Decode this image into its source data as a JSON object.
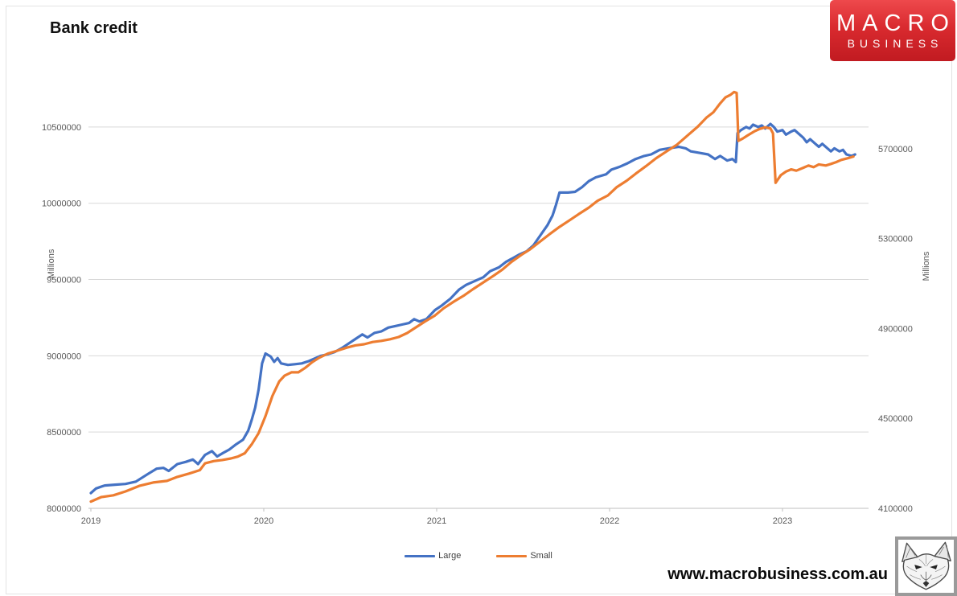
{
  "title": "Bank credit",
  "logo": {
    "line1": "MACRO",
    "line2": "BUSINESS",
    "bg_top": "#ee494c",
    "bg_bottom": "#c11b21"
  },
  "footer": {
    "url": "www.macrobusiness.com.au"
  },
  "chart_data": {
    "type": "line",
    "title": "Bank credit",
    "grid": true,
    "legend_position": "bottom",
    "x_ticks": [
      "2019",
      "2020",
      "2021",
      "2022",
      "2023"
    ],
    "x_range": [
      2019.0,
      2023.51
    ],
    "left_axis": {
      "label": "Millions",
      "min": 8000000,
      "max": 10800000,
      "ticks": [
        8000000,
        8500000,
        9000000,
        9500000,
        10000000,
        10500000
      ]
    },
    "right_axis": {
      "label": "Millions",
      "min": 4100000,
      "max": 6000000,
      "ticks": [
        4100000,
        4500000,
        4900000,
        5300000,
        5700000
      ]
    },
    "colors": {
      "grid": "#d9d9d9",
      "axis_line": "#bfbfbf",
      "tick_text": "#595959"
    },
    "series": [
      {
        "name": "Large",
        "axis": "left",
        "color": "#4472c4",
        "points": [
          [
            2019.0,
            8100000
          ],
          [
            2019.03,
            8130000
          ],
          [
            2019.08,
            8150000
          ],
          [
            2019.14,
            8155000
          ],
          [
            2019.2,
            8160000
          ],
          [
            2019.26,
            8175000
          ],
          [
            2019.33,
            8225000
          ],
          [
            2019.38,
            8260000
          ],
          [
            2019.42,
            8265000
          ],
          [
            2019.45,
            8245000
          ],
          [
            2019.5,
            8290000
          ],
          [
            2019.55,
            8305000
          ],
          [
            2019.59,
            8320000
          ],
          [
            2019.62,
            8290000
          ],
          [
            2019.66,
            8350000
          ],
          [
            2019.7,
            8375000
          ],
          [
            2019.73,
            8340000
          ],
          [
            2019.76,
            8360000
          ],
          [
            2019.8,
            8385000
          ],
          [
            2019.84,
            8420000
          ],
          [
            2019.88,
            8450000
          ],
          [
            2019.91,
            8510000
          ],
          [
            2019.93,
            8580000
          ],
          [
            2019.95,
            8660000
          ],
          [
            2019.97,
            8780000
          ],
          [
            2019.99,
            8950000
          ],
          [
            2020.01,
            9015000
          ],
          [
            2020.04,
            8995000
          ],
          [
            2020.06,
            8960000
          ],
          [
            2020.08,
            8985000
          ],
          [
            2020.1,
            8950000
          ],
          [
            2020.14,
            8940000
          ],
          [
            2020.18,
            8945000
          ],
          [
            2020.22,
            8950000
          ],
          [
            2020.26,
            8965000
          ],
          [
            2020.3,
            8985000
          ],
          [
            2020.33,
            9000000
          ],
          [
            2020.37,
            9010000
          ],
          [
            2020.41,
            9025000
          ],
          [
            2020.45,
            9050000
          ],
          [
            2020.49,
            9080000
          ],
          [
            2020.53,
            9110000
          ],
          [
            2020.57,
            9140000
          ],
          [
            2020.6,
            9120000
          ],
          [
            2020.64,
            9150000
          ],
          [
            2020.68,
            9160000
          ],
          [
            2020.72,
            9185000
          ],
          [
            2020.76,
            9195000
          ],
          [
            2020.8,
            9205000
          ],
          [
            2020.84,
            9215000
          ],
          [
            2020.87,
            9240000
          ],
          [
            2020.9,
            9225000
          ],
          [
            2020.94,
            9240000
          ],
          [
            2020.99,
            9300000
          ],
          [
            2021.03,
            9330000
          ],
          [
            2021.08,
            9375000
          ],
          [
            2021.13,
            9435000
          ],
          [
            2021.17,
            9465000
          ],
          [
            2021.22,
            9490000
          ],
          [
            2021.27,
            9515000
          ],
          [
            2021.31,
            9555000
          ],
          [
            2021.36,
            9580000
          ],
          [
            2021.4,
            9615000
          ],
          [
            2021.44,
            9640000
          ],
          [
            2021.48,
            9665000
          ],
          [
            2021.52,
            9685000
          ],
          [
            2021.56,
            9725000
          ],
          [
            2021.6,
            9790000
          ],
          [
            2021.64,
            9855000
          ],
          [
            2021.67,
            9920000
          ],
          [
            2021.69,
            9990000
          ],
          [
            2021.71,
            10070000
          ],
          [
            2021.76,
            10070000
          ],
          [
            2021.8,
            10075000
          ],
          [
            2021.84,
            10105000
          ],
          [
            2021.88,
            10145000
          ],
          [
            2021.92,
            10170000
          ],
          [
            2021.98,
            10190000
          ],
          [
            2022.01,
            10220000
          ],
          [
            2022.06,
            10240000
          ],
          [
            2022.1,
            10260000
          ],
          [
            2022.15,
            10290000
          ],
          [
            2022.2,
            10310000
          ],
          [
            2022.24,
            10320000
          ],
          [
            2022.29,
            10350000
          ],
          [
            2022.34,
            10360000
          ],
          [
            2022.4,
            10370000
          ],
          [
            2022.44,
            10360000
          ],
          [
            2022.47,
            10340000
          ],
          [
            2022.52,
            10330000
          ],
          [
            2022.57,
            10320000
          ],
          [
            2022.61,
            10290000
          ],
          [
            2022.64,
            10310000
          ],
          [
            2022.68,
            10280000
          ],
          [
            2022.71,
            10290000
          ],
          [
            2022.73,
            10270000
          ],
          [
            2022.74,
            10460000
          ],
          [
            2022.76,
            10480000
          ],
          [
            2022.79,
            10500000
          ],
          [
            2022.81,
            10490000
          ],
          [
            2022.83,
            10515000
          ],
          [
            2022.86,
            10500000
          ],
          [
            2022.88,
            10510000
          ],
          [
            2022.9,
            10490000
          ],
          [
            2022.93,
            10520000
          ],
          [
            2022.95,
            10500000
          ],
          [
            2022.97,
            10470000
          ],
          [
            2023.0,
            10480000
          ],
          [
            2023.02,
            10450000
          ],
          [
            2023.05,
            10470000
          ],
          [
            2023.07,
            10480000
          ],
          [
            2023.09,
            10460000
          ],
          [
            2023.12,
            10430000
          ],
          [
            2023.14,
            10400000
          ],
          [
            2023.16,
            10420000
          ],
          [
            2023.19,
            10390000
          ],
          [
            2023.21,
            10370000
          ],
          [
            2023.23,
            10390000
          ],
          [
            2023.26,
            10360000
          ],
          [
            2023.28,
            10340000
          ],
          [
            2023.3,
            10360000
          ],
          [
            2023.33,
            10340000
          ],
          [
            2023.35,
            10350000
          ],
          [
            2023.37,
            10320000
          ],
          [
            2023.4,
            10310000
          ],
          [
            2023.42,
            10320000
          ]
        ]
      },
      {
        "name": "Small",
        "axis": "right",
        "color": "#ed7d31",
        "points": [
          [
            2019.0,
            4130000
          ],
          [
            2019.06,
            4150000
          ],
          [
            2019.13,
            4158000
          ],
          [
            2019.2,
            4175000
          ],
          [
            2019.28,
            4200000
          ],
          [
            2019.36,
            4215000
          ],
          [
            2019.44,
            4222000
          ],
          [
            2019.5,
            4240000
          ],
          [
            2019.57,
            4255000
          ],
          [
            2019.63,
            4270000
          ],
          [
            2019.66,
            4300000
          ],
          [
            2019.71,
            4310000
          ],
          [
            2019.76,
            4315000
          ],
          [
            2019.81,
            4322000
          ],
          [
            2019.85,
            4330000
          ],
          [
            2019.89,
            4345000
          ],
          [
            2019.93,
            4385000
          ],
          [
            2019.97,
            4435000
          ],
          [
            2020.01,
            4510000
          ],
          [
            2020.05,
            4600000
          ],
          [
            2020.09,
            4665000
          ],
          [
            2020.12,
            4690000
          ],
          [
            2020.16,
            4705000
          ],
          [
            2020.2,
            4705000
          ],
          [
            2020.24,
            4725000
          ],
          [
            2020.28,
            4750000
          ],
          [
            2020.32,
            4770000
          ],
          [
            2020.37,
            4788000
          ],
          [
            2020.42,
            4800000
          ],
          [
            2020.48,
            4815000
          ],
          [
            2020.53,
            4825000
          ],
          [
            2020.58,
            4830000
          ],
          [
            2020.63,
            4840000
          ],
          [
            2020.68,
            4845000
          ],
          [
            2020.73,
            4852000
          ],
          [
            2020.78,
            4862000
          ],
          [
            2020.83,
            4880000
          ],
          [
            2020.88,
            4905000
          ],
          [
            2020.93,
            4930000
          ],
          [
            2020.99,
            4958000
          ],
          [
            2021.04,
            4990000
          ],
          [
            2021.1,
            5020000
          ],
          [
            2021.16,
            5048000
          ],
          [
            2021.21,
            5075000
          ],
          [
            2021.27,
            5105000
          ],
          [
            2021.33,
            5135000
          ],
          [
            2021.38,
            5162000
          ],
          [
            2021.43,
            5195000
          ],
          [
            2021.49,
            5228000
          ],
          [
            2021.54,
            5252000
          ],
          [
            2021.6,
            5288000
          ],
          [
            2021.65,
            5318000
          ],
          [
            2021.71,
            5352000
          ],
          [
            2021.77,
            5382000
          ],
          [
            2021.82,
            5408000
          ],
          [
            2021.88,
            5438000
          ],
          [
            2021.93,
            5468000
          ],
          [
            2021.99,
            5492000
          ],
          [
            2022.04,
            5528000
          ],
          [
            2022.1,
            5558000
          ],
          [
            2022.15,
            5588000
          ],
          [
            2022.21,
            5622000
          ],
          [
            2022.27,
            5658000
          ],
          [
            2022.33,
            5688000
          ],
          [
            2022.39,
            5718000
          ],
          [
            2022.45,
            5758000
          ],
          [
            2022.51,
            5798000
          ],
          [
            2022.56,
            5838000
          ],
          [
            2022.6,
            5862000
          ],
          [
            2022.64,
            5902000
          ],
          [
            2022.67,
            5928000
          ],
          [
            2022.7,
            5940000
          ],
          [
            2022.72,
            5952000
          ],
          [
            2022.735,
            5948000
          ],
          [
            2022.745,
            5735000
          ],
          [
            2022.77,
            5745000
          ],
          [
            2022.8,
            5760000
          ],
          [
            2022.84,
            5778000
          ],
          [
            2022.87,
            5788000
          ],
          [
            2022.9,
            5795000
          ],
          [
            2022.93,
            5790000
          ],
          [
            2022.945,
            5768000
          ],
          [
            2022.96,
            5548000
          ],
          [
            2022.99,
            5582000
          ],
          [
            2023.02,
            5598000
          ],
          [
            2023.05,
            5608000
          ],
          [
            2023.08,
            5602000
          ],
          [
            2023.12,
            5615000
          ],
          [
            2023.15,
            5625000
          ],
          [
            2023.18,
            5618000
          ],
          [
            2023.21,
            5630000
          ],
          [
            2023.25,
            5625000
          ],
          [
            2023.28,
            5632000
          ],
          [
            2023.31,
            5640000
          ],
          [
            2023.34,
            5650000
          ],
          [
            2023.38,
            5658000
          ],
          [
            2023.41,
            5665000
          ]
        ]
      }
    ]
  }
}
